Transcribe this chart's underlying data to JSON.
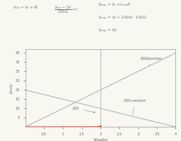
{
  "xlabel": "V(volts)",
  "ylabel": "I(mA)",
  "xlim": [
    0,
    4
  ],
  "ylim": [
    0,
    42
  ],
  "xticks": [
    0.5,
    1.0,
    1.5,
    2.0,
    2.5,
    3.0,
    3.5,
    4.0
  ],
  "yticks": [
    5,
    10,
    15,
    20,
    25,
    30,
    35,
    40
  ],
  "bg_color": "#f8f8f0",
  "line_color_resistor": "#aaaaaa",
  "line_color_led_resistor": "#aaaaaa",
  "line_color_led": "#cc2222",
  "line_color_dashed": "#777777",
  "annotation_100_resistor": "100Ωresistor",
  "annotation_led_resistor": "LED+resistor",
  "annotation_led": "LED",
  "eq1": "V_{tot} = V_d + IR",
  "eq2": "\\frac{V_{tot}-2V}{100\\Omega} = I",
  "eq3": "V_{max} = V_s + I_{max}R",
  "eq4": "V_{max} = 2v + 20mA \\cdot 100\\Omega",
  "eq5": "V_{max} = 4V",
  "vf": 2.0,
  "dashed_x": 2.0,
  "diode_V0": 1.72,
  "diode_Vt": 0.045,
  "diode_I0": 0.0008
}
